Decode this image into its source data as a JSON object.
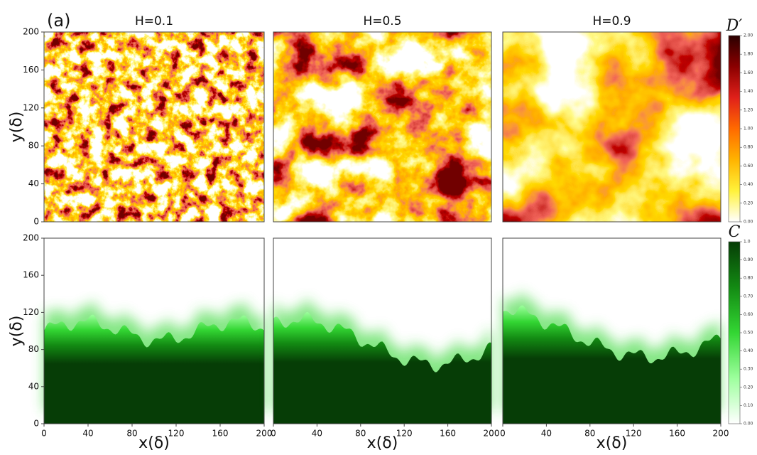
{
  "panel_label": "(a)",
  "chart_data": [
    {
      "type": "heatmap",
      "title": "H=0.1",
      "ylabel": "y(δ)",
      "ylim": [
        0,
        200
      ],
      "yticks": [
        0,
        40,
        80,
        120,
        160,
        200
      ]
    },
    {
      "type": "heatmap",
      "title": "H=0.5"
    },
    {
      "type": "heatmap",
      "title": "H=0.9",
      "colorbar": {
        "label": "D′",
        "colors": [
          "#ffffff",
          "#fff23a",
          "#ffb300",
          "#ff6a00",
          "#e0201a",
          "#8b0000",
          "#2a0000"
        ],
        "lim": [
          0,
          2
        ],
        "ticks": [
          {
            "value": 0,
            "label": "0.00"
          },
          {
            "value": 0.2,
            "label": "0.20"
          },
          {
            "value": 0.4,
            "label": "0.40"
          },
          {
            "value": 0.6,
            "label": "0.60"
          },
          {
            "value": 0.8,
            "label": "0.80"
          },
          {
            "value": 1.0,
            "label": "1.00"
          },
          {
            "value": 1.2,
            "label": "1.20"
          },
          {
            "value": 1.4,
            "label": "1.40"
          },
          {
            "value": 1.6,
            "label": "1.60"
          },
          {
            "value": 1.8,
            "label": "1.80"
          },
          {
            "value": 2.0,
            "label": "2.00"
          }
        ]
      }
    },
    {
      "type": "front",
      "ylabel": "y(δ)",
      "ylim": [
        0,
        200
      ],
      "yticks": [
        0,
        40,
        80,
        120,
        160,
        200
      ],
      "xlabel": "x(δ)",
      "xlim": [
        0,
        200
      ],
      "xticks": [
        0,
        40,
        80,
        120,
        160,
        200
      ]
    },
    {
      "type": "front",
      "xlabel": "x(δ)",
      "xlim": [
        0,
        200
      ],
      "xticks": [
        0,
        40,
        80,
        120,
        160,
        200
      ]
    },
    {
      "type": "front",
      "xlabel": "x(δ)",
      "xlim": [
        0,
        200
      ],
      "xticks": [
        0,
        40,
        80,
        120,
        160,
        200
      ],
      "colorbar": {
        "label": "C",
        "colors": [
          "#ffffff",
          "#9dff9d",
          "#33d633",
          "#138a13",
          "#063d06"
        ],
        "lim": [
          0,
          1
        ],
        "ticks": [
          {
            "value": 0,
            "label": "0.00"
          },
          {
            "value": 0.1,
            "label": "0.10"
          },
          {
            "value": 0.2,
            "label": "0.20"
          },
          {
            "value": 0.3,
            "label": "0.30"
          },
          {
            "value": 0.4,
            "label": "0.40"
          },
          {
            "value": 0.5,
            "label": "0.50"
          },
          {
            "value": 0.6,
            "label": "0.60"
          },
          {
            "value": 0.7,
            "label": "0.70"
          },
          {
            "value": 0.8,
            "label": "0.80"
          },
          {
            "value": 0.9,
            "label": "0.90"
          },
          {
            "value": 1.0,
            "label": "1.0"
          }
        ]
      }
    }
  ]
}
